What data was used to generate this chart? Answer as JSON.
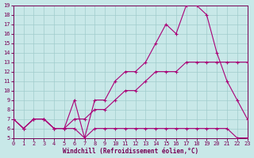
{
  "xlabel": "Windchill (Refroidissement éolien,°C)",
  "bg_color": "#c8e8e8",
  "grid_color": "#a0cccc",
  "line_color": "#aa0077",
  "tick_color": "#770055",
  "xlim": [
    0,
    23
  ],
  "ylim": [
    5,
    19
  ],
  "xticks": [
    0,
    1,
    2,
    3,
    4,
    5,
    6,
    7,
    8,
    9,
    10,
    11,
    12,
    13,
    14,
    15,
    16,
    17,
    18,
    19,
    20,
    21,
    22,
    23
  ],
  "yticks": [
    5,
    6,
    7,
    8,
    9,
    10,
    11,
    12,
    13,
    14,
    15,
    16,
    17,
    18,
    19
  ],
  "line1_x": [
    0,
    1,
    2,
    3,
    4,
    5,
    6,
    7,
    8,
    9,
    10,
    11,
    12,
    13,
    14,
    15,
    16,
    17,
    18,
    19,
    20,
    21,
    22,
    23
  ],
  "line1_y": [
    7,
    6,
    7,
    7,
    6,
    6,
    9,
    5,
    9,
    9,
    11,
    12,
    12,
    13,
    15,
    17,
    16,
    19,
    19,
    18,
    14,
    11,
    9,
    7
  ],
  "line2_x": [
    0,
    1,
    2,
    3,
    4,
    5,
    6,
    7,
    8,
    9,
    10,
    11,
    12,
    13,
    14,
    15,
    16,
    17,
    18,
    19,
    20,
    21,
    22,
    23
  ],
  "line2_y": [
    7,
    6,
    7,
    7,
    6,
    6,
    7,
    7,
    8,
    8,
    9,
    10,
    10,
    11,
    12,
    12,
    12,
    13,
    13,
    13,
    13,
    13,
    13,
    13
  ],
  "line3_x": [
    0,
    1,
    2,
    3,
    4,
    5,
    6,
    7,
    8,
    9,
    10,
    11,
    12,
    13,
    14,
    15,
    16,
    17,
    18,
    19,
    20,
    21,
    22,
    23
  ],
  "line3_y": [
    7,
    6,
    7,
    7,
    6,
    6,
    6,
    5,
    6,
    6,
    6,
    6,
    6,
    6,
    6,
    6,
    6,
    6,
    6,
    6,
    6,
    6,
    5,
    5
  ]
}
